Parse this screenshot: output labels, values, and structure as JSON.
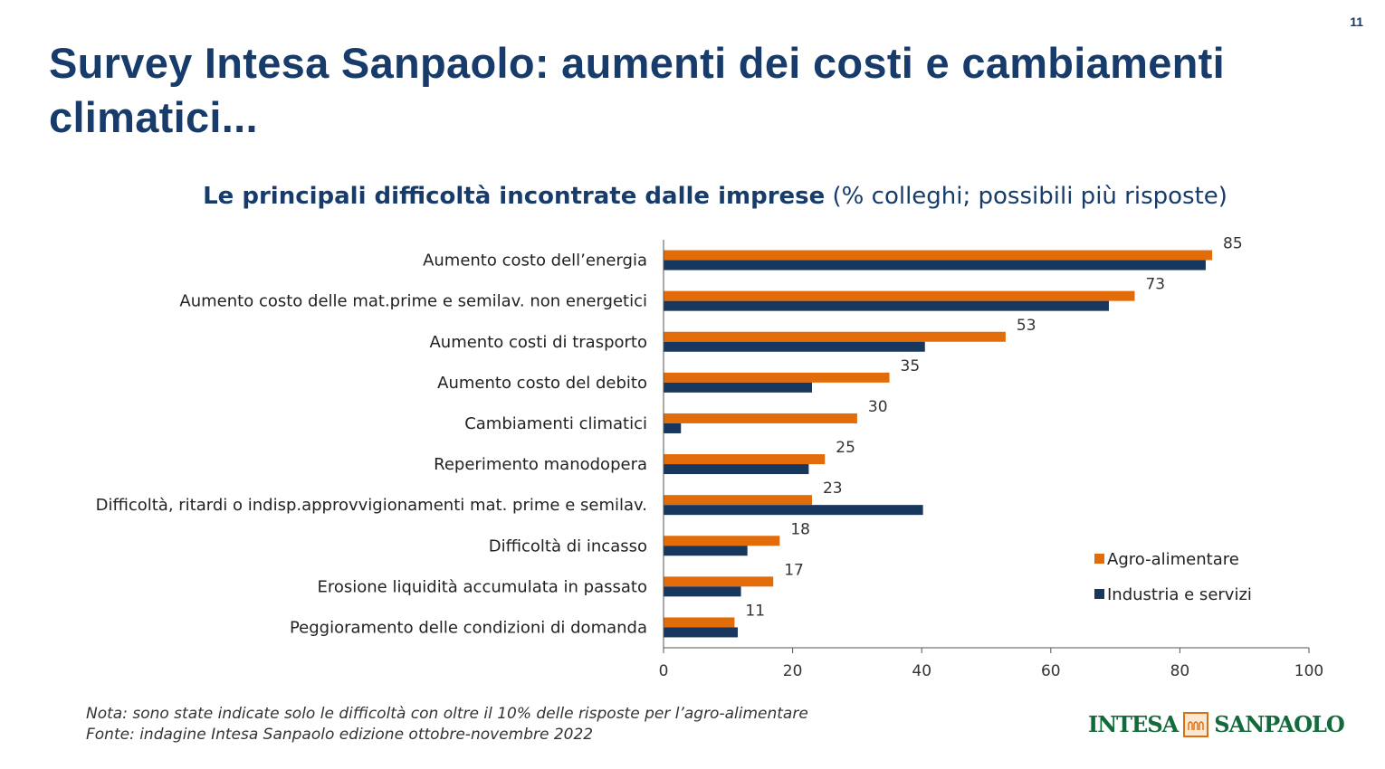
{
  "page_number": "11",
  "title": "Survey Intesa Sanpaolo: aumenti dei costi e cambiamenti climatici...",
  "chart_heading": {
    "bold": "Le principali difficoltà incontrate dalle imprese",
    "normal": " (% colleghi; possibili più risposte)"
  },
  "notes": {
    "line1": "Nota: sono state indicate solo le difficoltà con oltre il 10% delle risposte per l’agro-alimentare",
    "line2": "Fonte: indagine Intesa Sanpaolo edizione ottobre-novembre 2022"
  },
  "logo": {
    "left": "INTESA",
    "right": "SANPAOLO",
    "emblem": "intesa-sanpaolo-arch-emblem"
  },
  "colors": {
    "title": "#173c6b",
    "agro": "#e36c0a",
    "industria": "#17375e"
  },
  "chart_data": {
    "type": "bar",
    "orientation": "horizontal",
    "categories": [
      "Aumento  costo dell’energia",
      "Aumento  costo delle mat.prime e semilav. non energetici",
      "Aumento  costi di trasporto",
      "Aumento  costo del debito",
      "Cambiamenti climatici",
      "Reperimento manodopera",
      "Difficoltà, ritardi o indisp.approvvigionamenti mat. prime e semilav.",
      "Difficoltà di incasso",
      "Erosione liquidità accumulata in passato",
      "Peggioramento delle condizioni di domanda"
    ],
    "series": [
      {
        "name": "Agro-alimentare",
        "color": "#e36c0a",
        "values": [
          85,
          73,
          53,
          35,
          30,
          25,
          23,
          18,
          17,
          11
        ]
      },
      {
        "name": "Industria e servizi",
        "color": "#17375e",
        "values": [
          84,
          69,
          40.5,
          23,
          2.7,
          22.5,
          40.2,
          13,
          12,
          11.5
        ]
      }
    ],
    "data_labels_series": "Agro-alimentare",
    "xlim": [
      0,
      100
    ],
    "xticks": [
      "0",
      "20",
      "40",
      "60",
      "80",
      "100"
    ],
    "grid": false,
    "legend_position": "right"
  }
}
